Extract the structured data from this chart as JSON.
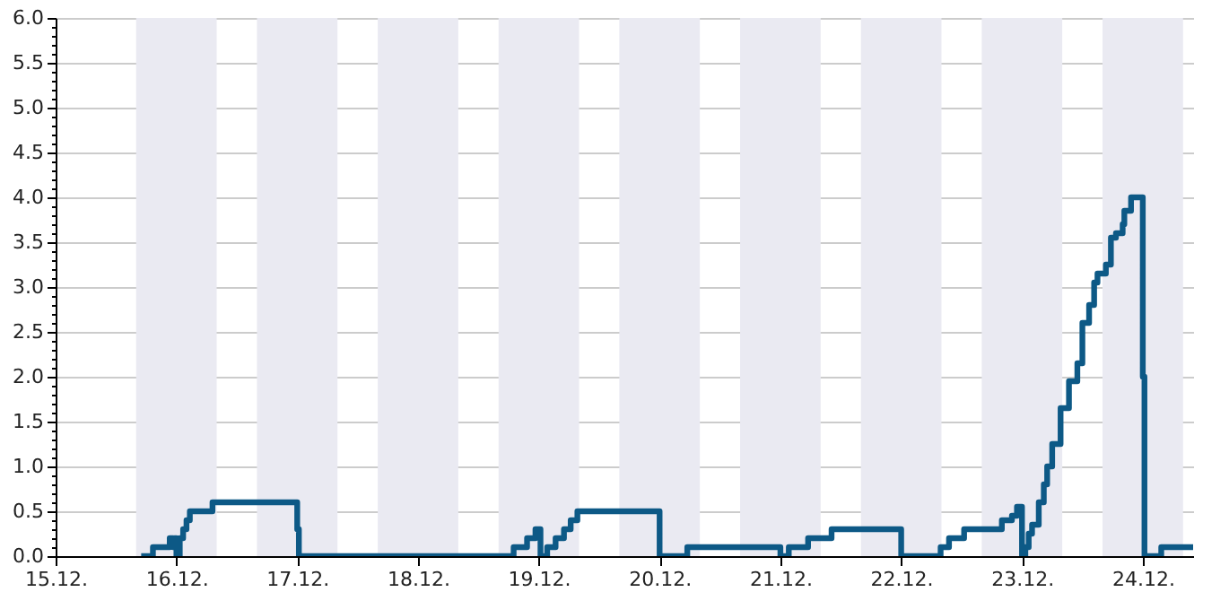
{
  "chart_data": {
    "type": "step",
    "line_style": "solid",
    "marker": "none",
    "grid": true,
    "xlim": [
      "--12-15",
      "--12-24T10:00"
    ],
    "xticks": [
      {
        "value": "--12-15",
        "label": "15.12."
      },
      {
        "value": "--12-16",
        "label": "16.12."
      },
      {
        "value": "--12-17",
        "label": "17.12."
      },
      {
        "value": "--12-18",
        "label": "18.12."
      },
      {
        "value": "--12-19",
        "label": "19.12."
      },
      {
        "value": "--12-20",
        "label": "20.12."
      },
      {
        "value": "--12-21",
        "label": "21.12."
      },
      {
        "value": "--12-22",
        "label": "22.12."
      },
      {
        "value": "--12-23",
        "label": "23.12."
      },
      {
        "value": "--12-24",
        "label": "24.12."
      }
    ],
    "ylim": [
      0,
      6
    ],
    "yticks": [
      {
        "value": 0,
        "label": "0.0"
      },
      {
        "value": 0.1,
        "label": null
      },
      {
        "value": 0.2,
        "label": null
      },
      {
        "value": 0.3,
        "label": null
      },
      {
        "value": 0.4,
        "label": null
      },
      {
        "value": 0.5,
        "label": "0.5"
      },
      {
        "value": 0.6,
        "label": null
      },
      {
        "value": 0.7,
        "label": null
      },
      {
        "value": 0.8,
        "label": null
      },
      {
        "value": 0.9,
        "label": null
      },
      {
        "value": 1,
        "label": "1.0"
      },
      {
        "value": 1.1,
        "label": null
      },
      {
        "value": 1.2,
        "label": null
      },
      {
        "value": 1.3,
        "label": null
      },
      {
        "value": 1.4,
        "label": null
      },
      {
        "value": 1.5,
        "label": "1.5"
      },
      {
        "value": 1.6,
        "label": null
      },
      {
        "value": 1.7,
        "label": null
      },
      {
        "value": 1.8,
        "label": null
      },
      {
        "value": 1.9,
        "label": null
      },
      {
        "value": 2,
        "label": "2.0"
      },
      {
        "value": 2.1,
        "label": null
      },
      {
        "value": 2.2,
        "label": null
      },
      {
        "value": 2.3,
        "label": null
      },
      {
        "value": 2.4,
        "label": null
      },
      {
        "value": 2.5,
        "label": "2.5"
      },
      {
        "value": 2.6,
        "label": null
      },
      {
        "value": 2.7,
        "label": null
      },
      {
        "value": 2.8,
        "label": null
      },
      {
        "value": 2.9,
        "label": null
      },
      {
        "value": 3,
        "label": "3.0"
      },
      {
        "value": 3.1,
        "label": null
      },
      {
        "value": 3.2,
        "label": null
      },
      {
        "value": 3.3,
        "label": null
      },
      {
        "value": 3.4,
        "label": null
      },
      {
        "value": 3.5,
        "label": "3.5"
      },
      {
        "value": 3.6,
        "label": null
      },
      {
        "value": 3.7,
        "label": null
      },
      {
        "value": 3.8,
        "label": null
      },
      {
        "value": 3.9,
        "label": null
      },
      {
        "value": 4,
        "label": "4.0"
      },
      {
        "value": 4.1,
        "label": null
      },
      {
        "value": 4.2,
        "label": null
      },
      {
        "value": 4.3,
        "label": null
      },
      {
        "value": 4.4,
        "label": null
      },
      {
        "value": 4.5,
        "label": "4.5"
      },
      {
        "value": 4.6,
        "label": null
      },
      {
        "value": 4.7,
        "label": null
      },
      {
        "value": 4.8,
        "label": null
      },
      {
        "value": 4.9,
        "label": null
      },
      {
        "value": 5,
        "label": "5.0"
      },
      {
        "value": 5.1,
        "label": null
      },
      {
        "value": 5.2,
        "label": null
      },
      {
        "value": 5.3,
        "label": null
      },
      {
        "value": 5.4,
        "label": null
      },
      {
        "value": 5.5,
        "label": "5.5"
      },
      {
        "value": 5.6,
        "label": null
      },
      {
        "value": 5.7,
        "label": null
      },
      {
        "value": 5.8,
        "label": null
      },
      {
        "value": 5.9,
        "label": null
      },
      {
        "value": 6,
        "label": "6.0"
      }
    ],
    "bands": [
      {
        "axis": "x",
        "from": "--12-15T16:00",
        "to": "--12-16T08:00",
        "color": "#eaeaf2"
      },
      {
        "axis": "x",
        "from": "--12-16T16:00",
        "to": "--12-17T08:00",
        "color": "#eaeaf2"
      },
      {
        "axis": "x",
        "from": "--12-17T16:00",
        "to": "--12-18T08:00",
        "color": "#eaeaf2"
      },
      {
        "axis": "x",
        "from": "--12-18T16:00",
        "to": "--12-19T08:00",
        "color": "#eaeaf2"
      },
      {
        "axis": "x",
        "from": "--12-19T16:00",
        "to": "--12-20T08:00",
        "color": "#eaeaf2"
      },
      {
        "axis": "x",
        "from": "--12-20T16:00",
        "to": "--12-21T08:00",
        "color": "#eaeaf2"
      },
      {
        "axis": "x",
        "from": "--12-21T16:00",
        "to": "--12-22T08:00",
        "color": "#eaeaf2"
      },
      {
        "axis": "x",
        "from": "--12-22T16:00",
        "to": "--12-23T08:00",
        "color": "#eaeaf2"
      },
      {
        "axis": "x",
        "from": "--12-23T16:00",
        "to": "--12-24T08:00",
        "color": "#eaeaf2"
      }
    ],
    "series": [
      {
        "color": "#0d5986",
        "x": [
          "--12-15T17:00",
          "--12-15T19:20",
          "--12-15T22:40",
          "--12-15T23:20",
          "--12-15T23:40",
          "--12-16T00:00",
          "--12-16T00:40",
          "--12-16T01:20",
          "--12-16T02:00",
          "--12-16T02:40",
          "--12-16T07:10",
          "--12-17T00:00",
          "--12-17T00:20",
          "--12-18T19:00",
          "--12-18T21:40",
          "--12-18T23:20",
          "--12-19T00:20",
          "--12-19T01:40",
          "--12-19T03:20",
          "--12-19T05:00",
          "--12-19T06:20",
          "--12-19T07:40",
          "--12-20T00:00",
          "--12-20T05:30",
          "--12-21T00:00",
          "--12-21T01:40",
          "--12-21T05:30",
          "--12-21T10:10",
          "--12-22T00:00",
          "--12-22T07:50",
          "--12-22T09:30",
          "--12-22T12:30",
          "--12-22T20:00",
          "--12-22T22:00",
          "--12-22T23:00",
          "--12-23T00:00",
          "--12-23T00:40",
          "--12-23T01:20",
          "--12-23T02:00",
          "--12-23T03:20",
          "--12-23T04:20",
          "--12-23T05:00",
          "--12-23T06:00",
          "--12-23T07:40",
          "--12-23T09:20",
          "--12-23T11:00",
          "--12-23T12:00",
          "--12-23T13:20",
          "--12-23T14:20",
          "--12-23T15:00",
          "--12-23T16:40",
          "--12-23T17:40",
          "--12-23T18:40",
          "--12-23T20:00",
          "--12-23T20:20",
          "--12-23T21:40",
          "--12-24T00:00",
          "--12-24T00:20",
          "--12-24T03:40",
          "--12-24T10:00"
        ],
        "values": [
          0,
          0.1,
          0.2,
          0.1,
          0.2,
          0,
          0.2,
          0.3,
          0.4,
          0.5,
          0.6,
          0.3,
          0,
          0.1,
          0.2,
          0.3,
          0,
          0.1,
          0.2,
          0.3,
          0.4,
          0.5,
          0,
          0.1,
          0,
          0.1,
          0.2,
          0.3,
          0,
          0.1,
          0.2,
          0.3,
          0.4,
          0.45,
          0.55,
          0,
          0.1,
          0.25,
          0.35,
          0.6,
          0.8,
          1.0,
          1.25,
          1.65,
          1.95,
          2.15,
          2.6,
          2.8,
          3.05,
          3.15,
          3.25,
          3.55,
          3.6,
          3.7,
          3.85,
          4.0,
          2.0,
          0,
          0.1,
          0.1
        ]
      }
    ]
  }
}
